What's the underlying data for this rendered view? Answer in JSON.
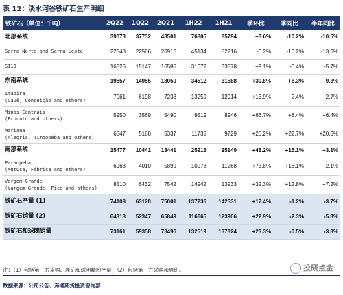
{
  "title": "表 12：淡水河谷铁矿石生产明细",
  "headers": [
    "铁矿石（单位：千吨）",
    "2Q22",
    "1Q22",
    "2Q21",
    "1H22",
    "1H21",
    "季环比",
    "季同比",
    "半年同比"
  ],
  "rows": [
    {
      "name": "北部系统",
      "vals": [
        "39073",
        "37732",
        "43501",
        "76805",
        "85794",
        "+3.6%",
        "-10.2%",
        "-10.5%"
      ],
      "style": "bold"
    },
    {
      "name": "Serra Norte and Serra Leste",
      "vals": [
        "22548",
        "22586",
        "26916",
        "45134",
        "52216",
        "-0.2%",
        "-16.2%",
        "-13.6%"
      ],
      "style": ""
    },
    {
      "name": "S11D",
      "vals": [
        "16525",
        "15147",
        "16585",
        "31672",
        "33578",
        "+9.1%",
        "-0.4%",
        "-5.7%"
      ],
      "style": ""
    },
    {
      "name": "东南系统",
      "vals": [
        "19557",
        "14955",
        "18059",
        "34512",
        "31588",
        "+30.8%",
        "+8.3%",
        "+9.3%"
      ],
      "style": "bold"
    },
    {
      "name": "Itabira\n(Cauê, Conceição and others)",
      "vals": [
        "7061",
        "6198",
        "7233",
        "13259",
        "12914",
        "+13.9%",
        "-2.4%",
        "+2.7%"
      ],
      "style": ""
    },
    {
      "name": "Minas Centrais\n(Brucutu and others)",
      "vals": [
        "5950",
        "3569",
        "5490",
        "9519",
        "8946",
        "+66.7%",
        "+8.4%",
        "+6.4%"
      ],
      "style": ""
    },
    {
      "name": "Mariana\n(Alegria, Timbopeba and others)",
      "vals": [
        "6547",
        "5188",
        "5337",
        "11735",
        "9729",
        "+26.2%",
        "+22.7%",
        "+20.6%"
      ],
      "style": ""
    },
    {
      "name": "南部系统",
      "vals": [
        "15477",
        "10441",
        "13441",
        "25918",
        "25149",
        "+48.2%",
        "+15.1%",
        "+3.1%"
      ],
      "style": "bold"
    },
    {
      "name": "Paraopeba\n(Mutuca, Fábrica and others)",
      "vals": [
        "6968",
        "4010",
        "5899",
        "10978",
        "11268",
        "+73.8%",
        "+18.1%",
        "-2.1%"
      ],
      "style": ""
    },
    {
      "name": "Vargem Grande\n(Vargem Grande, Pico and others)",
      "vals": [
        "8510",
        "6432",
        "7542",
        "14942",
        "13933",
        "+32.3%",
        "+12.8%",
        "+7.2%"
      ],
      "style": ""
    },
    {
      "name": "铁矿石产量 (1)",
      "vals": [
        "74108",
        "63128",
        "75001",
        "137236",
        "142531",
        "+17.4%",
        "-1.2%",
        "-3.7%"
      ],
      "style": "bold shade"
    },
    {
      "name": "铁矿石销量 (2)",
      "vals": [
        "64318",
        "52347",
        "65849",
        "116665",
        "123906",
        "+22.9%",
        "-2.3%",
        "-5.8%"
      ],
      "style": "bold shade"
    },
    {
      "name": "铁矿石和球团销量",
      "vals": [
        "73161",
        "59358",
        "73496",
        "132519",
        "137824",
        "+23.3%",
        "-0.5%",
        "-3.8%"
      ],
      "style": "bold shade"
    }
  ],
  "note": "注：（1）包括第三方采购、原矿和球团精粉产量；（2）包括第三方采购和原矿。",
  "source": "数据来源：公司公告、海通期货投资咨询部",
  "watermark": "投研点金"
}
